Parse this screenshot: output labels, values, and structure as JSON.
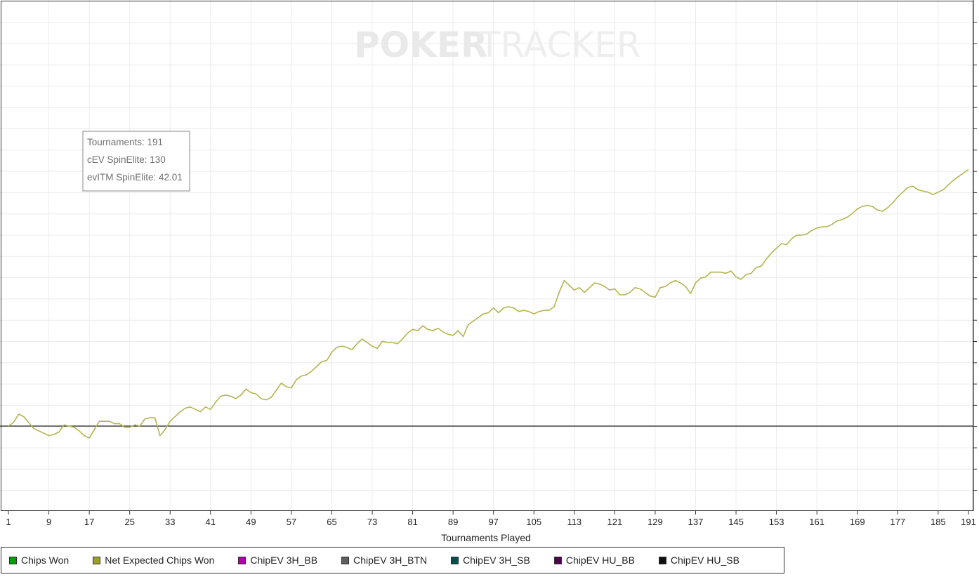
{
  "watermark": {
    "bold": "POKER",
    "light": "TRACKER"
  },
  "tooltip": {
    "line1": "Tournaments: 191",
    "line2": "cEV SpinElite: 130",
    "line3": "evITM SpinElite: 42.01"
  },
  "legend": [
    {
      "label": "Chips Won",
      "color": "#00a000"
    },
    {
      "label": "Net Expected Chips Won",
      "color": "#a0a020"
    },
    {
      "label": "ChipEV 3H_BB",
      "color": "#b000b0"
    },
    {
      "label": "ChipEV 3H_BTN",
      "color": "#606060"
    },
    {
      "label": "ChipEV 3H_SB",
      "color": "#005050"
    },
    {
      "label": "ChipEV HU_BB",
      "color": "#500050"
    },
    {
      "label": "ChipEV HU_SB",
      "color": "#101010"
    }
  ],
  "chart_data": {
    "type": "line",
    "title": "",
    "xlabel": "Tournaments Played",
    "ylabel": "",
    "x_ticks": [
      1,
      9,
      17,
      25,
      33,
      41,
      49,
      57,
      65,
      73,
      81,
      89,
      97,
      105,
      113,
      121,
      129,
      137,
      145,
      153,
      161,
      169,
      177,
      185,
      191
    ],
    "xlim": [
      1,
      191
    ],
    "y_axis_labels_visible": false,
    "grid": true,
    "legend_position": "bottom-left",
    "series": [
      {
        "name": "Net Expected Chips Won",
        "color": "#b4b450",
        "note_y_units": "unitless (y axis tick labels cut off); zero line shown",
        "points": [
          [
            1,
            0
          ],
          [
            2,
            0.3
          ],
          [
            3,
            1.0
          ],
          [
            4,
            0.8
          ],
          [
            5,
            0.3
          ],
          [
            6,
            -0.2
          ],
          [
            7,
            -0.4
          ],
          [
            8,
            -0.6
          ],
          [
            9,
            -0.8
          ],
          [
            10,
            -0.7
          ],
          [
            11,
            -0.5
          ],
          [
            12,
            0.1
          ],
          [
            13,
            0
          ],
          [
            14,
            -0.1
          ],
          [
            15,
            -0.4
          ],
          [
            16,
            -0.8
          ],
          [
            17,
            -1.0
          ],
          [
            18,
            -0.3
          ],
          [
            19,
            0.4
          ],
          [
            20,
            0.4
          ],
          [
            21,
            0.4
          ],
          [
            22,
            0.2
          ],
          [
            23,
            0.2
          ],
          [
            24,
            -0.1
          ],
          [
            25,
            -0.1
          ],
          [
            26,
            0.1
          ],
          [
            27,
            0
          ],
          [
            28,
            0.6
          ],
          [
            29,
            0.7
          ],
          [
            30,
            0.7
          ],
          [
            31,
            -0.8
          ],
          [
            32,
            -0.3
          ],
          [
            33,
            0.4
          ],
          [
            34,
            0.8
          ],
          [
            35,
            1.2
          ],
          [
            36,
            1.5
          ],
          [
            37,
            1.6
          ],
          [
            38,
            1.4
          ],
          [
            39,
            1.2
          ],
          [
            40,
            1.6
          ],
          [
            41,
            1.4
          ],
          [
            42,
            2.0
          ],
          [
            43,
            2.5
          ],
          [
            44,
            2.6
          ],
          [
            45,
            2.5
          ],
          [
            46,
            2.3
          ],
          [
            47,
            2.6
          ],
          [
            48,
            3.1
          ],
          [
            49,
            2.8
          ],
          [
            50,
            2.7
          ],
          [
            51,
            2.3
          ],
          [
            52,
            2.2
          ],
          [
            53,
            2.4
          ],
          [
            54,
            3.0
          ],
          [
            55,
            3.6
          ],
          [
            56,
            3.3
          ],
          [
            57,
            3.2
          ],
          [
            58,
            3.9
          ],
          [
            59,
            4.2
          ],
          [
            60,
            4.3
          ],
          [
            61,
            4.6
          ],
          [
            62,
            5.0
          ],
          [
            63,
            5.4
          ],
          [
            64,
            5.5
          ],
          [
            65,
            6.2
          ],
          [
            66,
            6.6
          ],
          [
            67,
            6.7
          ],
          [
            68,
            6.6
          ],
          [
            69,
            6.4
          ],
          [
            70,
            6.9
          ],
          [
            71,
            7.3
          ],
          [
            72,
            7.0
          ],
          [
            73,
            6.7
          ],
          [
            74,
            6.5
          ],
          [
            75,
            7.1
          ],
          [
            76,
            7.0
          ],
          [
            77,
            7.0
          ],
          [
            78,
            6.9
          ],
          [
            79,
            7.3
          ],
          [
            80,
            7.8
          ],
          [
            81,
            8.1
          ],
          [
            82,
            8.0
          ],
          [
            83,
            8.4
          ],
          [
            84,
            8.1
          ],
          [
            85,
            8.0
          ],
          [
            86,
            8.2
          ],
          [
            87,
            7.9
          ],
          [
            88,
            7.7
          ],
          [
            89,
            7.6
          ],
          [
            90,
            8.0
          ],
          [
            91,
            7.5
          ],
          [
            92,
            8.5
          ],
          [
            93,
            8.8
          ],
          [
            94,
            9.1
          ],
          [
            95,
            9.4
          ],
          [
            96,
            9.5
          ],
          [
            97,
            9.9
          ],
          [
            98,
            9.5
          ],
          [
            99,
            9.9
          ],
          [
            100,
            10.0
          ],
          [
            101,
            9.9
          ],
          [
            102,
            9.6
          ],
          [
            103,
            9.7
          ],
          [
            104,
            9.6
          ],
          [
            105,
            9.4
          ],
          [
            106,
            9.6
          ],
          [
            107,
            9.7
          ],
          [
            108,
            9.7
          ],
          [
            109,
            10.0
          ],
          [
            110,
            11.2
          ],
          [
            111,
            12.2
          ],
          [
            112,
            11.8
          ],
          [
            113,
            11.4
          ],
          [
            114,
            11.6
          ],
          [
            115,
            11.2
          ],
          [
            116,
            11.6
          ],
          [
            117,
            12.0
          ],
          [
            118,
            11.9
          ],
          [
            119,
            11.7
          ],
          [
            120,
            11.4
          ],
          [
            121,
            11.5
          ],
          [
            122,
            11.0
          ],
          [
            123,
            11.0
          ],
          [
            124,
            11.2
          ],
          [
            125,
            11.6
          ],
          [
            126,
            11.5
          ],
          [
            127,
            11.2
          ],
          [
            128,
            10.9
          ],
          [
            129,
            10.8
          ],
          [
            130,
            11.6
          ],
          [
            131,
            11.7
          ],
          [
            132,
            12.0
          ],
          [
            133,
            12.2
          ],
          [
            134,
            12.0
          ],
          [
            135,
            11.7
          ],
          [
            136,
            11.1
          ],
          [
            137,
            12.0
          ],
          [
            138,
            12.4
          ],
          [
            139,
            12.5
          ],
          [
            140,
            12.9
          ],
          [
            141,
            12.9
          ],
          [
            142,
            12.9
          ],
          [
            143,
            12.8
          ],
          [
            144,
            13.0
          ],
          [
            145,
            12.5
          ],
          [
            146,
            12.3
          ],
          [
            147,
            12.7
          ],
          [
            148,
            12.8
          ],
          [
            149,
            13.3
          ],
          [
            150,
            13.4
          ],
          [
            151,
            14.0
          ],
          [
            152,
            14.5
          ],
          [
            153,
            14.9
          ],
          [
            154,
            15.3
          ],
          [
            155,
            15.2
          ],
          [
            156,
            15.7
          ],
          [
            157,
            16.0
          ],
          [
            158,
            16.0
          ],
          [
            159,
            16.1
          ],
          [
            160,
            16.4
          ],
          [
            161,
            16.6
          ],
          [
            162,
            16.7
          ],
          [
            163,
            16.7
          ],
          [
            164,
            16.9
          ],
          [
            165,
            17.2
          ],
          [
            166,
            17.3
          ],
          [
            167,
            17.5
          ],
          [
            168,
            17.8
          ],
          [
            169,
            18.2
          ],
          [
            170,
            18.4
          ],
          [
            171,
            18.5
          ],
          [
            172,
            18.4
          ],
          [
            173,
            18.1
          ],
          [
            174,
            18.0
          ],
          [
            175,
            18.3
          ],
          [
            176,
            18.7
          ],
          [
            177,
            19.2
          ],
          [
            178,
            19.6
          ],
          [
            179,
            20.0
          ],
          [
            180,
            20.1
          ],
          [
            181,
            19.8
          ],
          [
            182,
            19.7
          ],
          [
            183,
            19.6
          ],
          [
            184,
            19.4
          ],
          [
            185,
            19.6
          ],
          [
            186,
            19.8
          ],
          [
            187,
            20.2
          ],
          [
            188,
            20.6
          ],
          [
            189,
            20.9
          ],
          [
            190,
            21.2
          ],
          [
            191,
            21.5
          ]
        ]
      }
    ]
  }
}
